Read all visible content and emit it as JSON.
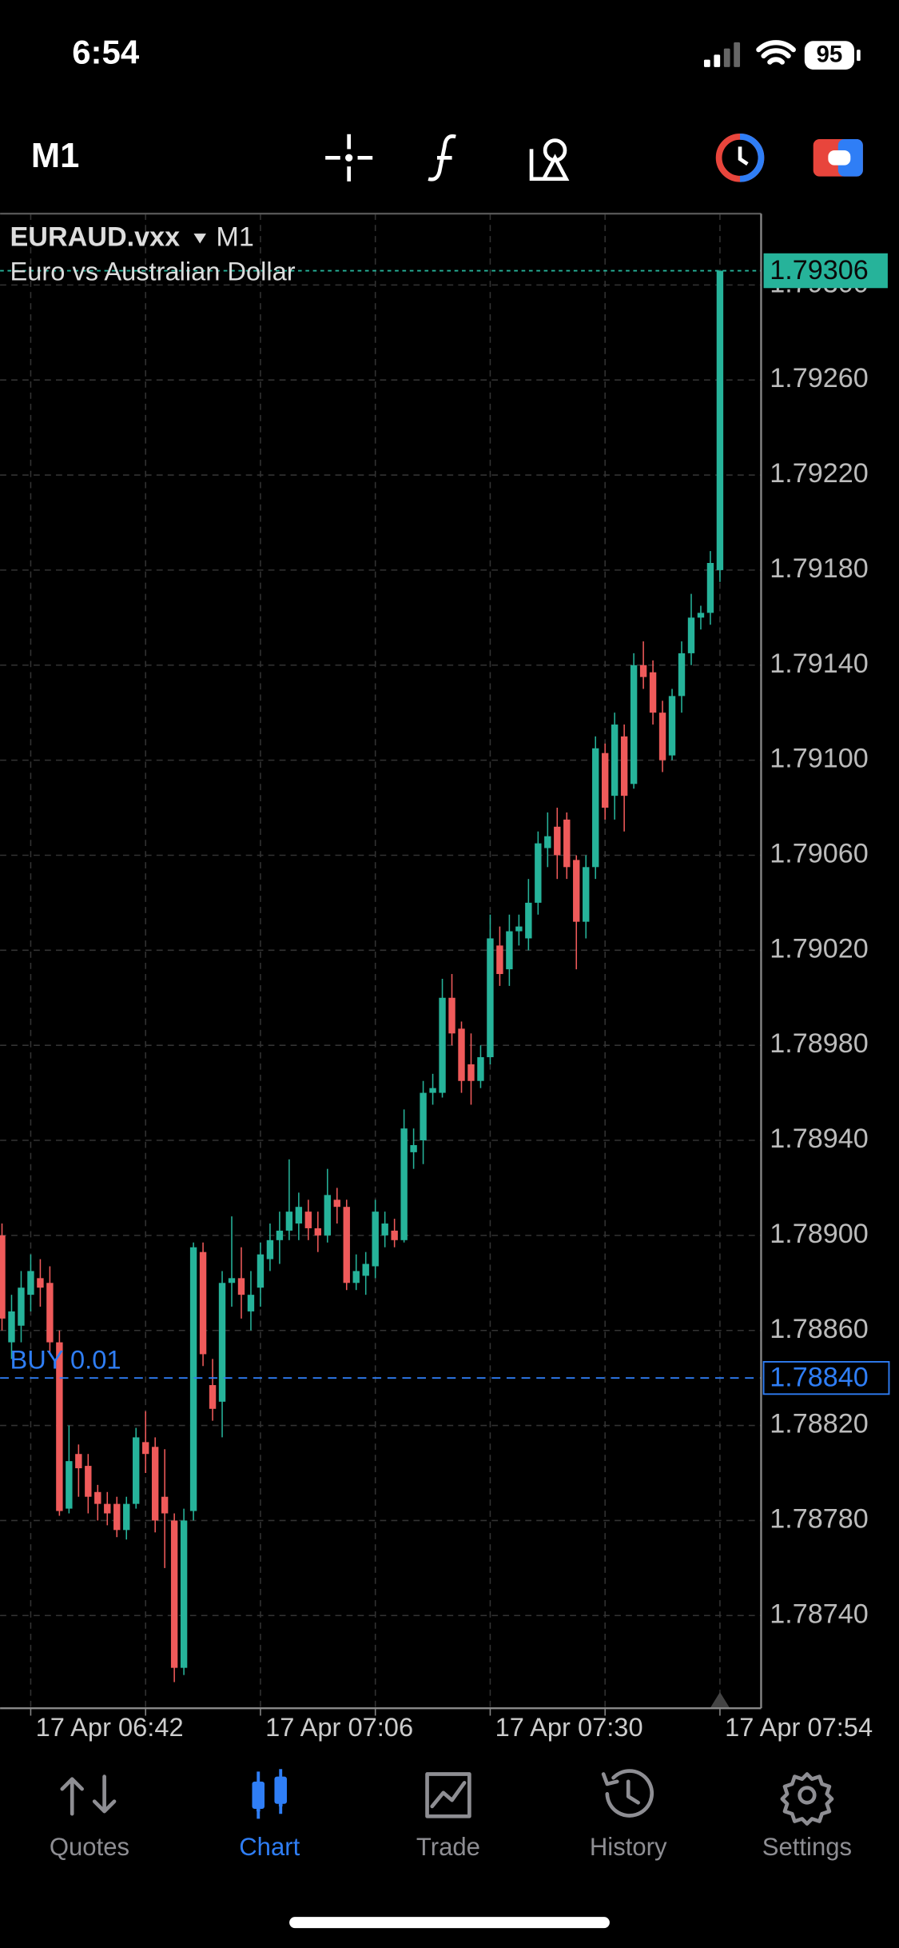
{
  "status_bar": {
    "time": "6:54",
    "battery": "95"
  },
  "toolbar": {
    "timeframe": "M1"
  },
  "chart_data": {
    "type": "candlestick",
    "symbol": "EURAUD.vxx",
    "timeframe": "M1",
    "description": "Euro vs Australian Dollar",
    "up_color": "#26b39a",
    "down_color": "#ef5a5a",
    "grid": true,
    "open": [
      1.789,
      1.78855,
      1.78862,
      1.78875,
      1.78882,
      1.7888,
      1.78855,
      1.78785,
      1.78808,
      1.78803,
      1.78792,
      1.78787,
      1.78787,
      1.78776,
      1.78787,
      1.78813,
      1.78811,
      1.7879,
      1.7878,
      1.78718,
      1.78784,
      1.78893,
      1.78837,
      1.7883,
      1.7888,
      1.78882,
      1.78868,
      1.78878,
      1.7889,
      1.78898,
      1.78902,
      1.78905,
      1.7891,
      1.78903,
      1.789,
      1.78915,
      1.78912,
      1.7888,
      1.78883,
      1.78887,
      1.789,
      1.78902,
      1.78898,
      1.78935,
      1.7894,
      1.7896,
      1.7896,
      1.79,
      1.78987,
      1.78972,
      1.78965,
      1.78975,
      1.79022,
      1.79012,
      1.79028,
      1.79025,
      1.7904,
      1.79063,
      1.79072,
      1.79075,
      1.79058,
      1.79032,
      1.79055,
      1.79103,
      1.79085,
      1.7911,
      1.7909,
      1.7914,
      1.79137,
      1.7912,
      1.79102,
      1.79127,
      1.79145,
      1.7916,
      1.79162,
      1.7918
    ],
    "high": [
      1.78905,
      1.78875,
      1.78885,
      1.78892,
      1.7889,
      1.78887,
      1.7886,
      1.7882,
      1.78812,
      1.78808,
      1.78795,
      1.78792,
      1.7879,
      1.7879,
      1.78819,
      1.78826,
      1.78815,
      1.7881,
      1.78783,
      1.78785,
      1.78897,
      1.78897,
      1.78848,
      1.78885,
      1.78908,
      1.78895,
      1.78885,
      1.78897,
      1.78905,
      1.7891,
      1.78932,
      1.78918,
      1.78915,
      1.7891,
      1.78928,
      1.7892,
      1.78915,
      1.78892,
      1.78893,
      1.78915,
      1.7891,
      1.78907,
      1.78953,
      1.78945,
      1.78965,
      1.78968,
      1.79008,
      1.7901,
      1.7899,
      1.78985,
      1.7898,
      1.79035,
      1.7903,
      1.79035,
      1.79035,
      1.7905,
      1.7907,
      1.79078,
      1.7908,
      1.79078,
      1.7906,
      1.7906,
      1.7911,
      1.79107,
      1.7912,
      1.79115,
      1.79145,
      1.7915,
      1.79142,
      1.79125,
      1.7913,
      1.7915,
      1.7917,
      1.79165,
      1.79188,
      1.79306
    ],
    "low": [
      1.7886,
      1.78848,
      1.78855,
      1.78868,
      1.7887,
      1.7885,
      1.78782,
      1.78783,
      1.7879,
      1.78783,
      1.7878,
      1.78778,
      1.78773,
      1.78772,
      1.78785,
      1.788,
      1.78775,
      1.7876,
      1.78712,
      1.78715,
      1.7878,
      1.78845,
      1.78822,
      1.78815,
      1.7887,
      1.78865,
      1.7886,
      1.7887,
      1.78885,
      1.78888,
      1.78898,
      1.78898,
      1.78898,
      1.78893,
      1.78897,
      1.78905,
      1.78877,
      1.78877,
      1.78875,
      1.78882,
      1.78895,
      1.78895,
      1.78897,
      1.78928,
      1.7893,
      1.78955,
      1.78958,
      1.7898,
      1.7896,
      1.78955,
      1.78962,
      1.78972,
      1.79005,
      1.79005,
      1.79022,
      1.7902,
      1.79035,
      1.79055,
      1.7905,
      1.7905,
      1.79012,
      1.79025,
      1.7905,
      1.79075,
      1.79075,
      1.7907,
      1.79088,
      1.7913,
      1.79115,
      1.79095,
      1.791,
      1.7912,
      1.7914,
      1.79155,
      1.79157,
      1.79175
    ],
    "close": [
      1.78865,
      1.78868,
      1.78878,
      1.78885,
      1.78878,
      1.78855,
      1.78784,
      1.78805,
      1.78802,
      1.7879,
      1.78787,
      1.78783,
      1.78776,
      1.78787,
      1.78815,
      1.78808,
      1.7878,
      1.78783,
      1.78718,
      1.7878,
      1.78895,
      1.7885,
      1.78827,
      1.7888,
      1.78882,
      1.78875,
      1.78875,
      1.78892,
      1.78898,
      1.78902,
      1.7891,
      1.78912,
      1.78903,
      1.789,
      1.78917,
      1.78912,
      1.7888,
      1.78885,
      1.78888,
      1.7891,
      1.78905,
      1.78898,
      1.78945,
      1.78938,
      1.7896,
      1.78962,
      1.79,
      1.78985,
      1.78965,
      1.78965,
      1.78975,
      1.79025,
      1.7901,
      1.79028,
      1.7903,
      1.7904,
      1.79065,
      1.79068,
      1.7906,
      1.79055,
      1.79032,
      1.79055,
      1.79105,
      1.7908,
      1.79115,
      1.79085,
      1.7914,
      1.79135,
      1.7912,
      1.791,
      1.79127,
      1.79145,
      1.7916,
      1.79162,
      1.79183,
      1.79306
    ],
    "xlim": [
      -0.2,
      79.3
    ],
    "xticks": [
      {
        "value": 3,
        "label": "17 Apr 06:42"
      },
      {
        "value": 15,
        "label": null
      },
      {
        "value": 27,
        "label": "17 Apr 07:06"
      },
      {
        "value": 39,
        "label": null
      },
      {
        "value": 51,
        "label": "17 Apr 07:30"
      },
      {
        "value": 63,
        "label": null
      },
      {
        "value": 75,
        "label": "17 Apr 07:54"
      }
    ],
    "ylim": [
      1.78701,
      1.7933
    ],
    "yticks": [
      {
        "value": 1.7874,
        "label": "1.78740"
      },
      {
        "value": 1.7878,
        "label": "1.78780"
      },
      {
        "value": 1.7882,
        "label": "1.78820"
      },
      {
        "value": 1.7886,
        "label": "1.78860"
      },
      {
        "value": 1.789,
        "label": "1.78900"
      },
      {
        "value": 1.7894,
        "label": "1.78940"
      },
      {
        "value": 1.7898,
        "label": "1.78980"
      },
      {
        "value": 1.7902,
        "label": "1.79020"
      },
      {
        "value": 1.7906,
        "label": "1.79060"
      },
      {
        "value": 1.791,
        "label": "1.79100"
      },
      {
        "value": 1.7914,
        "label": "1.79140"
      },
      {
        "value": 1.7918,
        "label": "1.79180"
      },
      {
        "value": 1.7922,
        "label": "1.79220"
      },
      {
        "value": 1.7926,
        "label": "1.79260"
      },
      {
        "value": 1.793,
        "label": "1.79300"
      }
    ],
    "current_price": 1.79306,
    "order": {
      "label": "BUY 0.01",
      "price": {
        "value": 1.7884,
        "label": "1.78840"
      },
      "color": "#2f7ef6"
    }
  },
  "tab_bar": {
    "active_color": "#2f7ef6",
    "tabs": [
      {
        "label": "Quotes",
        "active": false
      },
      {
        "label": "Chart",
        "active": true
      },
      {
        "label": "Trade",
        "active": false
      },
      {
        "label": "History",
        "active": false
      },
      {
        "label": "Settings",
        "active": false
      }
    ]
  }
}
